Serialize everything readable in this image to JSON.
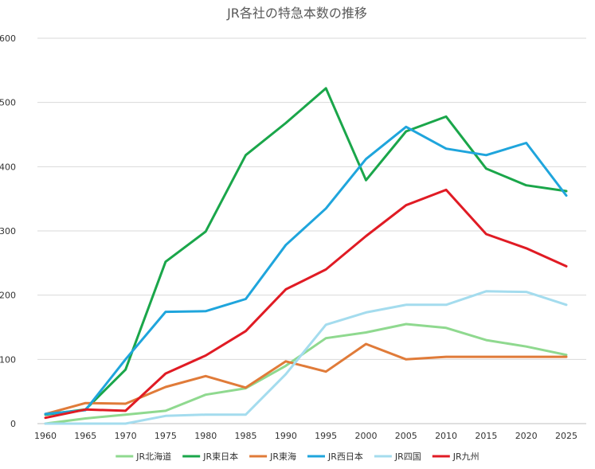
{
  "chart_data": {
    "type": "line",
    "title": "JR各社の特急本数の推移",
    "xlabel": "",
    "ylabel": "",
    "ylim": [
      0,
      600
    ],
    "yticks": [
      0,
      100,
      200,
      300,
      400,
      500,
      600
    ],
    "grid": true,
    "legend_position": "bottom",
    "categories": [
      "1960",
      "1965",
      "1970",
      "1975",
      "1980",
      "1985",
      "1990",
      "1995",
      "2000",
      "2005",
      "2010",
      "2015",
      "2020",
      "2025"
    ],
    "series": [
      {
        "name": "JR北海道",
        "color": "#8fd98f",
        "values": [
          0,
          8,
          14,
          20,
          45,
          55,
          90,
          133,
          142,
          155,
          149,
          130,
          120,
          107
        ]
      },
      {
        "name": "JR東日本",
        "color": "#1aa64a",
        "values": [
          14,
          22,
          84,
          252,
          299,
          418,
          468,
          522,
          379,
          455,
          478,
          397,
          371,
          362
        ]
      },
      {
        "name": "JR東海",
        "color": "#e07b39",
        "values": [
          15,
          32,
          31,
          57,
          74,
          56,
          97,
          81,
          124,
          100,
          104,
          104,
          104,
          104
        ]
      },
      {
        "name": "JR西日本",
        "color": "#1fa5dc",
        "values": [
          15,
          21,
          100,
          174,
          175,
          194,
          278,
          335,
          412,
          462,
          428,
          418,
          437,
          355
        ]
      },
      {
        "name": "JR四国",
        "color": "#a4dcee",
        "values": [
          0,
          0,
          0,
          12,
          14,
          14,
          77,
          154,
          173,
          185,
          185,
          206,
          205,
          185
        ]
      },
      {
        "name": "JR九州",
        "color": "#e01b24",
        "values": [
          9,
          22,
          20,
          78,
          106,
          144,
          209,
          240,
          292,
          340,
          364,
          295,
          273,
          245
        ]
      }
    ]
  }
}
